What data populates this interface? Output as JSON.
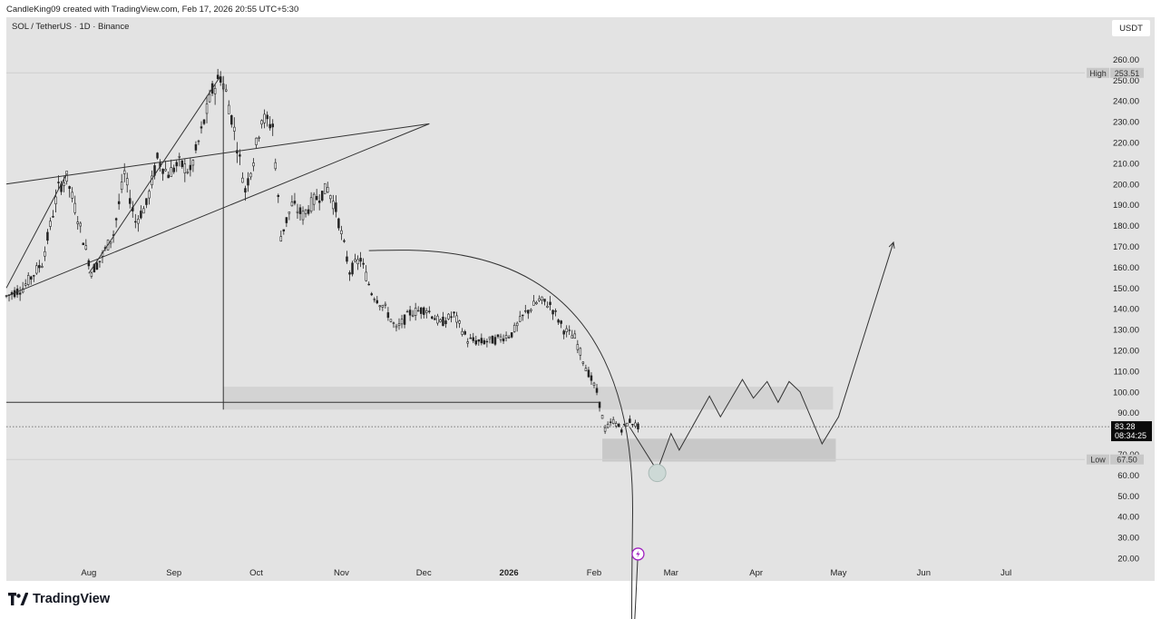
{
  "header": {
    "attribution": "CandleKing09 created with TradingView.com, Feb 17, 2026 20:55 UTC+5:30"
  },
  "legend": {
    "symbol": "SOL / TetherUS · 1D · Binance"
  },
  "currency_button": "USDT",
  "brand": {
    "name": "TradingView",
    "logo_icon": "tradingview-logo-icon"
  },
  "chart_data": {
    "type": "candlestick",
    "symbol": "SOL / TetherUS",
    "interval": "1D",
    "exchange": "Binance",
    "y_axis": {
      "ticks": [
        "20.00",
        "30.00",
        "40.00",
        "50.00",
        "60.00",
        "70.00",
        "80.00",
        "90.00",
        "100.00",
        "110.00",
        "120.00",
        "130.00",
        "140.00",
        "150.00",
        "160.00",
        "170.00",
        "180.00",
        "190.00",
        "200.00",
        "210.00",
        "220.00",
        "230.00",
        "240.00",
        "250.00",
        "260.00"
      ],
      "range": [
        16,
        268
      ]
    },
    "x_axis": {
      "ticks": [
        {
          "label": "Aug",
          "date": "2025-08-01",
          "bold": false
        },
        {
          "label": "Sep",
          "date": "2025-09-01",
          "bold": false
        },
        {
          "label": "Oct",
          "date": "2025-10-01",
          "bold": false
        },
        {
          "label": "Nov",
          "date": "2025-11-01",
          "bold": false
        },
        {
          "label": "Dec",
          "date": "2025-12-01",
          "bold": false
        },
        {
          "label": "2026",
          "date": "2026-01-01",
          "bold": true
        },
        {
          "label": "Feb",
          "date": "2026-02-01",
          "bold": false
        },
        {
          "label": "Mar",
          "date": "2026-03-01",
          "bold": false
        },
        {
          "label": "Apr",
          "date": "2026-04-01",
          "bold": false
        },
        {
          "label": "May",
          "date": "2026-05-01",
          "bold": false
        },
        {
          "label": "Jun",
          "date": "2026-06-01",
          "bold": false
        },
        {
          "label": "Jul",
          "date": "2026-07-01",
          "bold": false
        }
      ],
      "range": [
        "2025-07-02",
        "2026-07-30"
      ]
    },
    "high": {
      "label": "High",
      "value": "253.51"
    },
    "low": {
      "label": "Low",
      "value": "67.50"
    },
    "last": {
      "value": "83.28",
      "countdown": "08:34:25"
    },
    "grid": false,
    "colors": {
      "up": "#ffffff",
      "down": "#222222",
      "zone": "#c8c8c8",
      "panel": "#e3e3e3"
    },
    "price_path": [
      [
        "2025-07-02",
        146
      ],
      [
        "2025-07-08",
        150
      ],
      [
        "2025-07-15",
        162
      ],
      [
        "2025-07-21",
        198
      ],
      [
        "2025-07-24",
        203
      ],
      [
        "2025-07-28",
        184
      ],
      [
        "2025-08-02",
        158
      ],
      [
        "2025-08-05",
        163
      ],
      [
        "2025-08-10",
        176
      ],
      [
        "2025-08-14",
        205
      ],
      [
        "2025-08-18",
        182
      ],
      [
        "2025-08-22",
        190
      ],
      [
        "2025-08-26",
        212
      ],
      [
        "2025-08-30",
        205
      ],
      [
        "2025-09-03",
        210
      ],
      [
        "2025-09-07",
        206
      ],
      [
        "2025-09-11",
        225
      ],
      [
        "2025-09-15",
        245
      ],
      [
        "2025-09-18",
        252
      ],
      [
        "2025-09-20",
        244
      ],
      [
        "2025-09-23",
        226
      ],
      [
        "2025-09-27",
        197
      ],
      [
        "2025-09-30",
        212
      ],
      [
        "2025-10-03",
        232
      ],
      [
        "2025-10-07",
        228
      ],
      [
        "2025-10-10",
        175
      ],
      [
        "2025-10-14",
        190
      ],
      [
        "2025-10-18",
        185
      ],
      [
        "2025-10-22",
        192
      ],
      [
        "2025-10-27",
        198
      ],
      [
        "2025-10-30",
        188
      ],
      [
        "2025-11-04",
        158
      ],
      [
        "2025-11-08",
        164
      ],
      [
        "2025-11-12",
        148
      ],
      [
        "2025-11-17",
        140
      ],
      [
        "2025-11-21",
        130
      ],
      [
        "2025-11-26",
        138
      ],
      [
        "2025-12-02",
        140
      ],
      [
        "2025-12-07",
        133
      ],
      [
        "2025-12-12",
        137
      ],
      [
        "2025-12-17",
        125
      ],
      [
        "2025-12-22",
        124
      ],
      [
        "2025-12-27",
        125
      ],
      [
        "2026-01-02",
        128
      ],
      [
        "2026-01-07",
        138
      ],
      [
        "2026-01-12",
        144
      ],
      [
        "2026-01-16",
        142
      ],
      [
        "2026-01-21",
        130
      ],
      [
        "2026-01-25",
        126
      ],
      [
        "2026-01-29",
        112
      ],
      [
        "2026-02-02",
        100
      ],
      [
        "2026-02-05",
        82
      ],
      [
        "2026-02-08",
        86
      ],
      [
        "2026-02-11",
        82
      ],
      [
        "2026-02-14",
        86
      ],
      [
        "2026-02-17",
        83.28
      ]
    ],
    "annotations": {
      "ascending_support": {
        "from": [
          "2025-07-02",
          146
        ],
        "to": [
          "2025-12-03",
          229
        ]
      },
      "upper_trendline": {
        "from": [
          "2025-07-02",
          200
        ],
        "to": [
          "2025-12-03",
          229
        ]
      },
      "channel_line_a": {
        "from": [
          "2025-07-02",
          150
        ],
        "to": [
          "2025-07-24",
          205
        ]
      },
      "channel_line_b": {
        "from": [
          "2025-08-01",
          157
        ],
        "to": [
          "2025-09-18",
          252
        ]
      },
      "horizontal_support": {
        "from": [
          "2025-07-02",
          95
        ],
        "to": [
          "2026-02-03",
          95
        ]
      },
      "vertical_marker": {
        "date": "2025-09-19",
        "from": 252,
        "to": 91.5
      },
      "resistance_zone": {
        "from": "2025-09-19",
        "to": "2026-04-29",
        "top": 102.5,
        "bottom": 91.5
      },
      "demand_zone": {
        "from": "2026-02-04",
        "to": "2026-04-30",
        "top": 77.5,
        "bottom": 66.5
      },
      "rounded_top": {
        "from": [
          "2025-11-11",
          168
        ],
        "peak": [
          "2025-12-04",
          168
        ],
        "to": [
          "2026-02-17",
          20
        ]
      },
      "projection": [
        [
          "2026-02-14",
          83
        ],
        [
          "2026-02-24",
          62
        ],
        [
          "2026-03-01",
          80
        ],
        [
          "2026-03-04",
          72
        ],
        [
          "2026-03-15",
          98
        ],
        [
          "2026-03-19",
          88
        ],
        [
          "2026-03-27",
          106
        ],
        [
          "2026-03-31",
          97
        ],
        [
          "2026-04-05",
          105
        ],
        [
          "2026-04-09",
          95
        ],
        [
          "2026-04-13",
          105
        ],
        [
          "2026-04-17",
          100
        ],
        [
          "2026-04-25",
          75
        ],
        [
          "2026-05-01",
          88
        ],
        [
          "2026-05-21",
          172
        ]
      ],
      "target_circle": {
        "date": "2026-02-24",
        "value": 61
      },
      "event_marker": {
        "date": "2026-02-17",
        "value": 22,
        "icon": "lightning-event-icon"
      }
    }
  }
}
